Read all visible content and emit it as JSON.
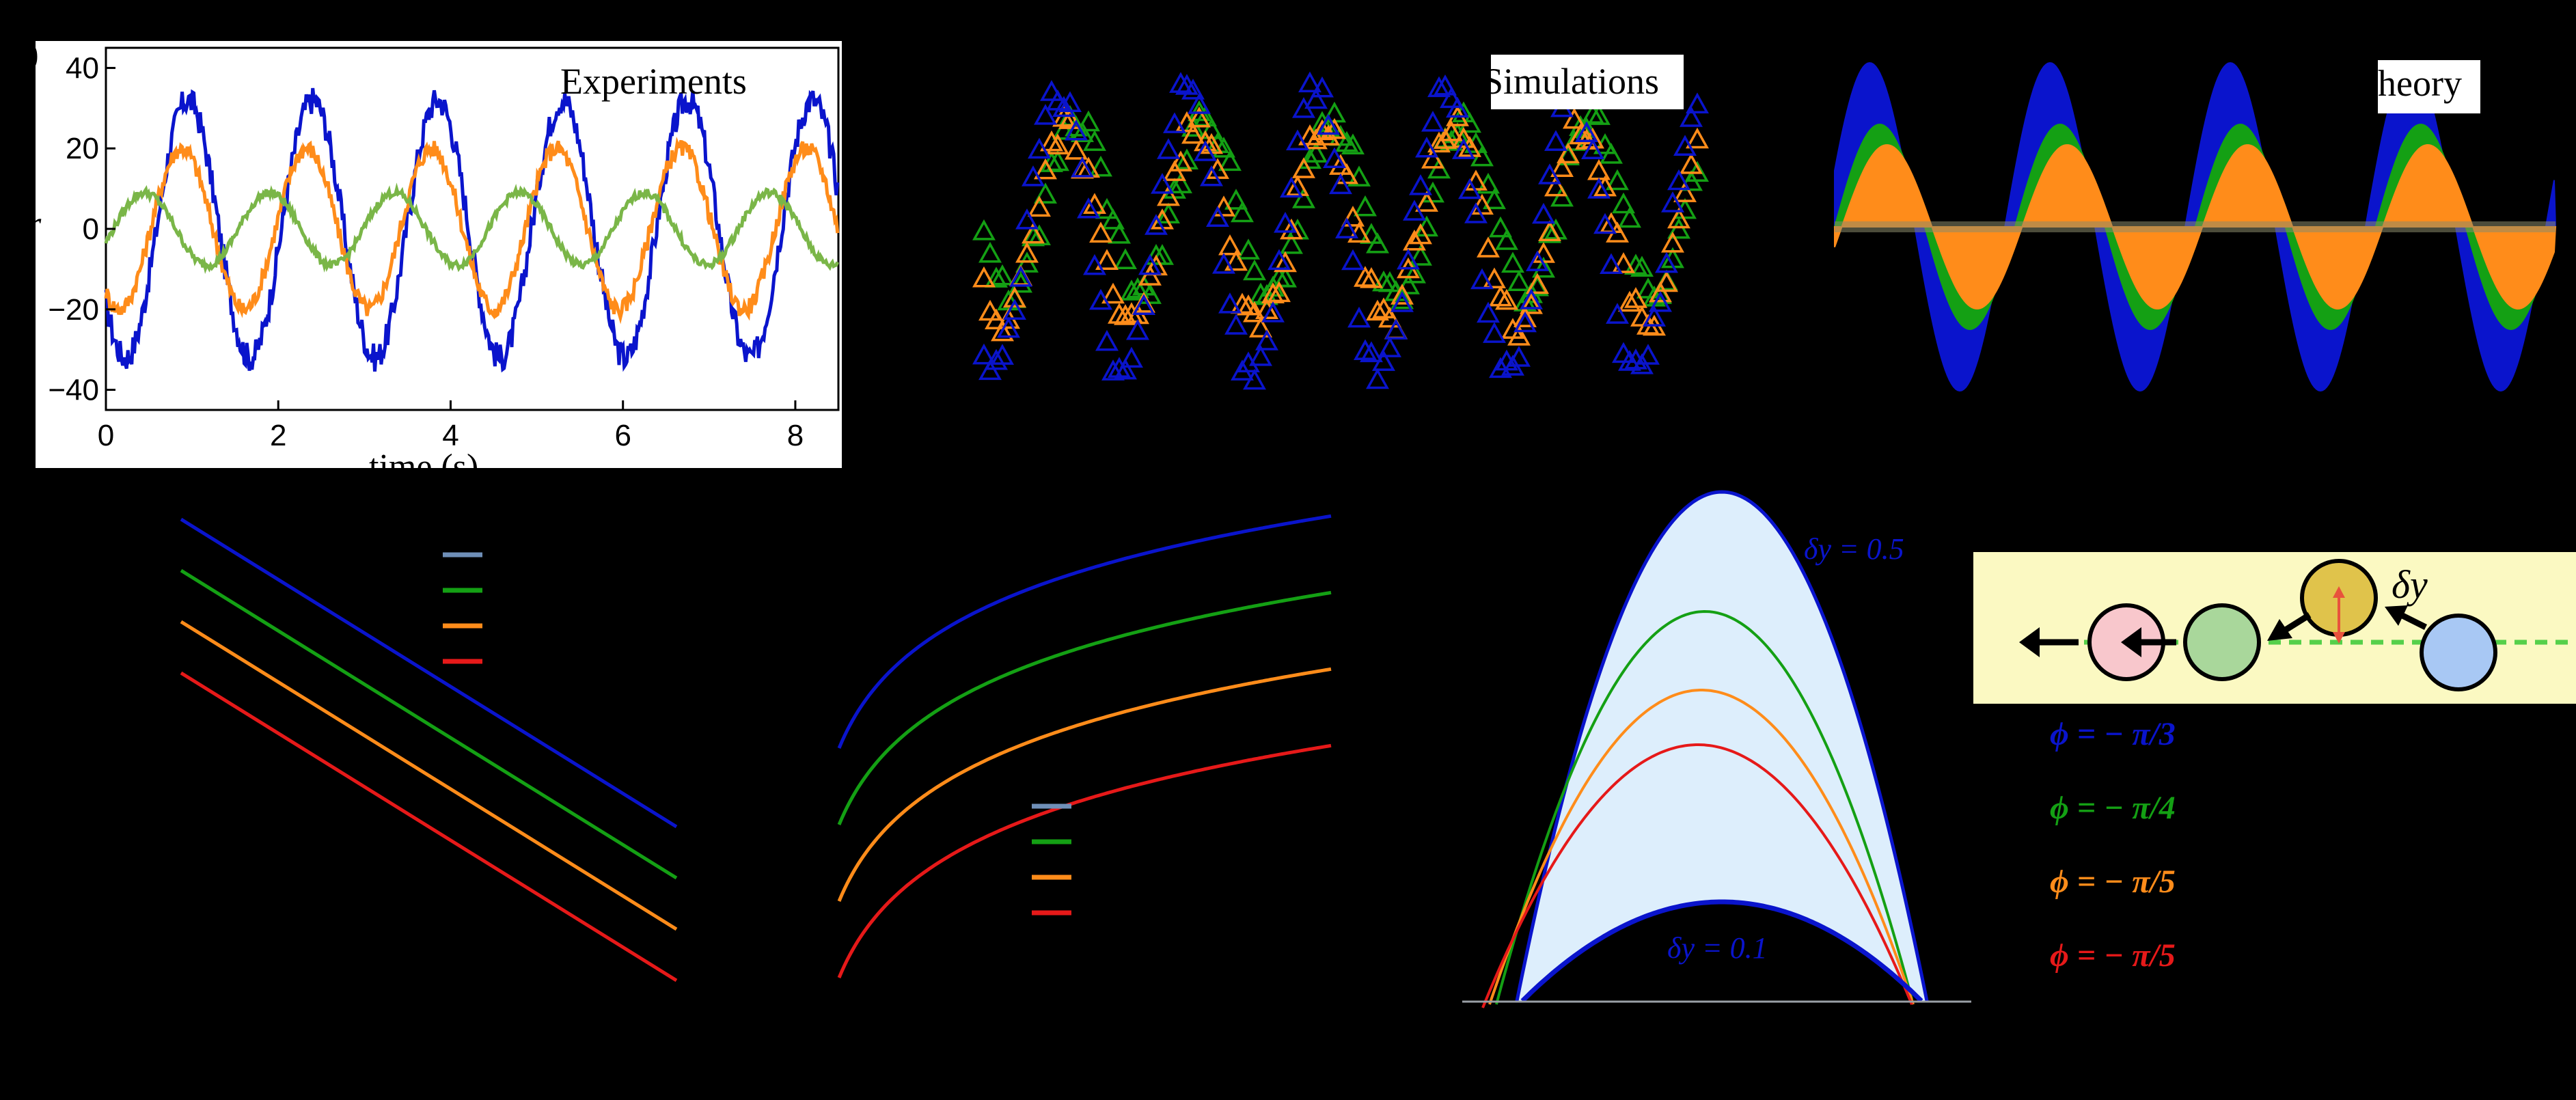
{
  "colors": {
    "blue": "#0a14cc",
    "orange": "#ff8c1a",
    "green": "#14a014",
    "red": "#e61919",
    "exp_green": "#7ab648",
    "steelblue": "#6f8fb8",
    "fill_light": "#ddeefc",
    "strip": "#fbf9c2"
  },
  "panel_a": {
    "panel_label": ")",
    "title": "Experiments",
    "xlabel": "time (s)",
    "ylabel": "r"
  },
  "panel_b": {
    "title": "Simulations"
  },
  "panel_c": {
    "title": "heory"
  },
  "panel_f": {
    "label_top": "δy = 0.5",
    "label_bottom": "δy = 0.1"
  },
  "panel_g": {
    "delta_label": "δy",
    "phi_labels": [
      "ϕ = − π/3",
      "ϕ = − π/4",
      "ϕ = − π/5",
      "ϕ = − π/5"
    ]
  },
  "chart_data": [
    {
      "type": "line",
      "title": "Experiments",
      "xlabel": "time (s)",
      "ylabel": "r",
      "xlim": [
        0,
        8.5
      ],
      "ylim": [
        -45,
        45
      ],
      "x_ticks": [
        0,
        2,
        4,
        6,
        8
      ],
      "y_ticks": [
        -40,
        -20,
        0,
        20,
        40
      ],
      "y_tick_labels": [
        "−40",
        "−20",
        "0",
        "20",
        "40"
      ],
      "grid": false,
      "series": [
        {
          "color": "blue",
          "period": 1.45,
          "amplitude": 32,
          "phase_peak": 0.95
        },
        {
          "color": "orange",
          "period": 1.45,
          "amplitude": 20,
          "phase_peak": 0.88
        },
        {
          "color": "green",
          "period": 1.45,
          "amplitude": 9,
          "phase_peak": 0.45
        }
      ]
    },
    {
      "type": "scatter",
      "title": "Simulations",
      "series": [
        {
          "color": "blue",
          "marker": "triangle"
        },
        {
          "color": "orange",
          "marker": "triangle"
        },
        {
          "color": "green",
          "marker": "triangle"
        }
      ]
    },
    {
      "type": "area",
      "title": "heory",
      "series": [
        {
          "color": "blue"
        },
        {
          "color": "green"
        },
        {
          "color": "orange"
        }
      ]
    },
    {
      "type": "line",
      "series": [
        {
          "color": "blue"
        },
        {
          "color": "green"
        },
        {
          "color": "orange"
        },
        {
          "color": "red"
        }
      ],
      "legend_colors": [
        "steelblue",
        "green",
        "orange",
        "red"
      ]
    },
    {
      "type": "line",
      "series": [
        {
          "color": "blue"
        },
        {
          "color": "green"
        },
        {
          "color": "orange"
        },
        {
          "color": "red"
        }
      ],
      "legend_colors": [
        "steelblue",
        "green",
        "orange",
        "red"
      ]
    },
    {
      "type": "area",
      "series": [
        {
          "name": "δy = 0.5",
          "color": "blue"
        },
        {
          "color": "green"
        },
        {
          "color": "orange"
        },
        {
          "color": "red"
        },
        {
          "name": "δy = 0.1",
          "color": "blue"
        }
      ]
    }
  ]
}
